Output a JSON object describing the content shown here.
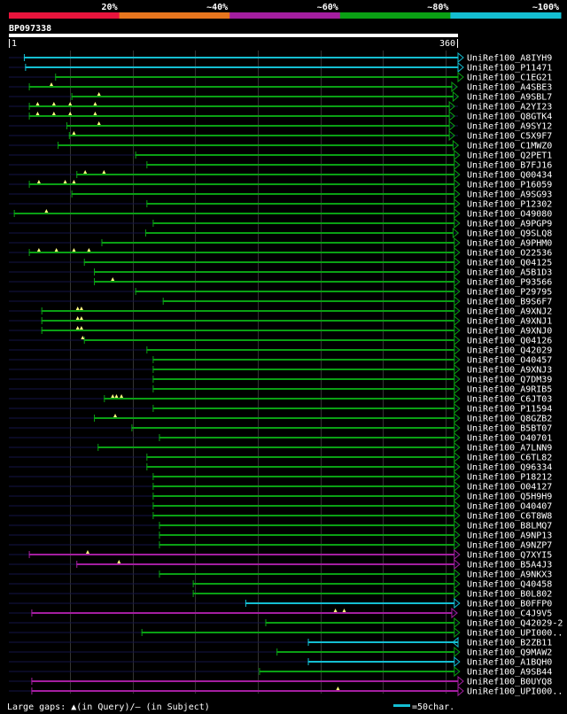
{
  "chart_data": {
    "type": "alignment",
    "query_name": "BP097338",
    "query_start": "1",
    "query_end": "360",
    "x_range": [
      1,
      360
    ],
    "gridlines": [
      50,
      100,
      150,
      200,
      250,
      300,
      350
    ],
    "identity_legend": [
      {
        "label": "20%",
        "color": "#e8143c"
      },
      {
        "label": "~40%",
        "color": "#e8761e"
      },
      {
        "label": "~60%",
        "color": "#a41ea0"
      },
      {
        "label": "~80%",
        "color": "#0aa014"
      },
      {
        "label": "~100%",
        "color": "#14bed2"
      }
    ],
    "colors": {
      "green": "#0aa014",
      "cyan": "#14bed2",
      "magenta": "#a41ea0",
      "dark": "#141446",
      "grid": "#333333",
      "gap": "#ffff80"
    },
    "hits": [
      {
        "name": "UniRef100_A8IYH9",
        "start": 13,
        "end": 360,
        "color": "cyan",
        "arrow": "right",
        "gaps": []
      },
      {
        "name": "UniRef100_P11471",
        "start": 14,
        "end": 360,
        "color": "cyan",
        "arrow": "right",
        "gaps": []
      },
      {
        "name": "UniRef100_C1EG21",
        "start": 38,
        "end": 360,
        "color": "green",
        "arrow": "right",
        "gaps": []
      },
      {
        "name": "UniRef100_A4SBE3",
        "start": 17,
        "end": 355,
        "color": "green",
        "arrow": "right",
        "gaps": [
          35
        ]
      },
      {
        "name": "UniRef100_A9SBL7",
        "start": 51,
        "end": 356,
        "color": "green",
        "arrow": "right",
        "gaps": [
          73
        ]
      },
      {
        "name": "UniRef100_A2YI23",
        "start": 17,
        "end": 353,
        "color": "green",
        "arrow": "right",
        "gaps": [
          24,
          37,
          50,
          70
        ]
      },
      {
        "name": "UniRef100_Q8GTK4",
        "start": 17,
        "end": 353,
        "color": "green",
        "arrow": "right",
        "gaps": [
          24,
          37,
          50,
          70
        ]
      },
      {
        "name": "UniRef100_A9SY12",
        "start": 47,
        "end": 353,
        "color": "green",
        "arrow": "right",
        "gaps": [
          73
        ]
      },
      {
        "name": "UniRef100_C5X9F7",
        "start": 49,
        "end": 353,
        "color": "green",
        "arrow": "right",
        "gaps": [
          53
        ]
      },
      {
        "name": "UniRef100_C1MWZ0",
        "start": 40,
        "end": 356,
        "color": "green",
        "arrow": "right",
        "gaps": []
      },
      {
        "name": "UniRef100_Q2PET1",
        "start": 102,
        "end": 357,
        "color": "green",
        "arrow": "right",
        "gaps": []
      },
      {
        "name": "UniRef100_B7FJ16",
        "start": 111,
        "end": 357,
        "color": "green",
        "arrow": "right",
        "gaps": []
      },
      {
        "name": "UniRef100_Q00434",
        "start": 55,
        "end": 357,
        "color": "green",
        "arrow": "right",
        "gaps": [
          62,
          77
        ]
      },
      {
        "name": "UniRef100_P16059",
        "start": 17,
        "end": 357,
        "color": "green",
        "arrow": "right",
        "gaps": [
          25,
          46,
          53
        ]
      },
      {
        "name": "UniRef100_A9SG93",
        "start": 51,
        "end": 357,
        "color": "green",
        "arrow": "right",
        "gaps": []
      },
      {
        "name": "UniRef100_P12302",
        "start": 111,
        "end": 357,
        "color": "green",
        "arrow": "right",
        "gaps": []
      },
      {
        "name": "UniRef100_O49080",
        "start": 5,
        "end": 357,
        "color": "green",
        "arrow": "right",
        "gaps": [
          31
        ]
      },
      {
        "name": "UniRef100_A9PGP9",
        "start": 116,
        "end": 357,
        "color": "green",
        "arrow": "right",
        "gaps": []
      },
      {
        "name": "UniRef100_Q9SLQ8",
        "start": 110,
        "end": 356,
        "color": "green",
        "arrow": "right",
        "gaps": []
      },
      {
        "name": "UniRef100_A9PHM0",
        "start": 75,
        "end": 357,
        "color": "green",
        "arrow": "right",
        "gaps": []
      },
      {
        "name": "UniRef100_O22536",
        "start": 17,
        "end": 357,
        "color": "green",
        "arrow": "right",
        "gaps": [
          25,
          39,
          53,
          65
        ]
      },
      {
        "name": "UniRef100_Q04125",
        "start": 61,
        "end": 357,
        "color": "green",
        "arrow": "right",
        "gaps": []
      },
      {
        "name": "UniRef100_A5B1D3",
        "start": 69,
        "end": 357,
        "color": "green",
        "arrow": "right",
        "gaps": []
      },
      {
        "name": "UniRef100_P93566",
        "start": 69,
        "end": 357,
        "color": "green",
        "arrow": "right",
        "gaps": [
          84
        ]
      },
      {
        "name": "UniRef100_P29795",
        "start": 102,
        "end": 357,
        "color": "green",
        "arrow": "right",
        "gaps": []
      },
      {
        "name": "UniRef100_B9S6F7",
        "start": 124,
        "end": 357,
        "color": "green",
        "arrow": "right",
        "gaps": []
      },
      {
        "name": "UniRef100_A9XNJ2",
        "start": 27,
        "end": 357,
        "color": "green",
        "arrow": "right",
        "gaps": [
          56,
          59
        ]
      },
      {
        "name": "UniRef100_A9XNJ1",
        "start": 27,
        "end": 357,
        "color": "green",
        "arrow": "right",
        "gaps": [
          56,
          59
        ]
      },
      {
        "name": "UniRef100_A9XNJ0",
        "start": 27,
        "end": 357,
        "color": "green",
        "arrow": "right",
        "gaps": [
          56,
          59
        ]
      },
      {
        "name": "UniRef100_Q04126",
        "start": 61,
        "end": 357,
        "color": "green",
        "arrow": "right",
        "gaps": [
          60
        ]
      },
      {
        "name": "UniRef100_Q42029",
        "start": 111,
        "end": 357,
        "color": "green",
        "arrow": "right",
        "gaps": []
      },
      {
        "name": "UniRef100_O40457",
        "start": 116,
        "end": 357,
        "color": "green",
        "arrow": "right",
        "gaps": []
      },
      {
        "name": "UniRef100_A9XNJ3",
        "start": 116,
        "end": 357,
        "color": "green",
        "arrow": "right",
        "gaps": []
      },
      {
        "name": "UniRef100_Q7DM39",
        "start": 116,
        "end": 357,
        "color": "green",
        "arrow": "right",
        "gaps": []
      },
      {
        "name": "UniRef100_A9RIB5",
        "start": 116,
        "end": 357,
        "color": "green",
        "arrow": "right",
        "gaps": []
      },
      {
        "name": "UniRef100_C6JT03",
        "start": 77,
        "end": 357,
        "color": "green",
        "arrow": "right",
        "gaps": [
          84,
          87,
          91
        ]
      },
      {
        "name": "UniRef100_P11594",
        "start": 116,
        "end": 357,
        "color": "green",
        "arrow": "right",
        "gaps": []
      },
      {
        "name": "UniRef100_Q8GZB2",
        "start": 69,
        "end": 357,
        "color": "green",
        "arrow": "right",
        "gaps": [
          86
        ]
      },
      {
        "name": "UniRef100_B5BT07",
        "start": 99,
        "end": 357,
        "color": "green",
        "arrow": "right",
        "gaps": []
      },
      {
        "name": "UniRef100_O40701",
        "start": 121,
        "end": 357,
        "color": "green",
        "arrow": "right",
        "gaps": []
      },
      {
        "name": "UniRef100_A7LNN9",
        "start": 72,
        "end": 357,
        "color": "green",
        "arrow": "right",
        "gaps": []
      },
      {
        "name": "UniRef100_C6TL82",
        "start": 111,
        "end": 357,
        "color": "green",
        "arrow": "right",
        "gaps": []
      },
      {
        "name": "UniRef100_Q96334",
        "start": 111,
        "end": 357,
        "color": "green",
        "arrow": "right",
        "gaps": []
      },
      {
        "name": "UniRef100_P18212",
        "start": 116,
        "end": 357,
        "color": "green",
        "arrow": "right",
        "gaps": []
      },
      {
        "name": "UniRef100_O04127",
        "start": 116,
        "end": 357,
        "color": "green",
        "arrow": "right",
        "gaps": []
      },
      {
        "name": "UniRef100_Q5H9H9",
        "start": 116,
        "end": 357,
        "color": "green",
        "arrow": "right",
        "gaps": []
      },
      {
        "name": "UniRef100_O40407",
        "start": 116,
        "end": 357,
        "color": "green",
        "arrow": "right",
        "gaps": []
      },
      {
        "name": "UniRef100_C6T8W8",
        "start": 116,
        "end": 357,
        "color": "green",
        "arrow": "right",
        "gaps": []
      },
      {
        "name": "UniRef100_B8LMQ7",
        "start": 121,
        "end": 357,
        "color": "green",
        "arrow": "right",
        "gaps": []
      },
      {
        "name": "UniRef100_A9NP13",
        "start": 121,
        "end": 357,
        "color": "green",
        "arrow": "right",
        "gaps": []
      },
      {
        "name": "UniRef100_A9NZP7",
        "start": 121,
        "end": 357,
        "color": "green",
        "arrow": "right",
        "gaps": []
      },
      {
        "name": "UniRef100_Q7XYI5",
        "start": 17,
        "end": 357,
        "color": "magenta",
        "arrow": "right",
        "gaps": [
          64
        ]
      },
      {
        "name": "UniRef100_B5A4J3",
        "start": 55,
        "end": 357,
        "color": "magenta",
        "arrow": "right",
        "gaps": [
          89
        ]
      },
      {
        "name": "UniRef100_A9NKX3",
        "start": 121,
        "end": 357,
        "color": "green",
        "arrow": "right",
        "gaps": []
      },
      {
        "name": "UniRef100_Q40458",
        "start": 148,
        "end": 357,
        "color": "green",
        "arrow": "right",
        "gaps": []
      },
      {
        "name": "UniRef100_B0L802",
        "start": 148,
        "end": 357,
        "color": "green",
        "arrow": "right",
        "gaps": []
      },
      {
        "name": "UniRef100_B0FFP0",
        "start": 190,
        "end": 357,
        "color": "cyan",
        "arrow": "right",
        "gaps": []
      },
      {
        "name": "UniRef100_C4J9V5",
        "start": 19,
        "end": 355,
        "color": "magenta",
        "arrow": "right",
        "gaps": [
          262,
          269
        ]
      },
      {
        "name": "UniRef100_Q42029-2",
        "start": 206,
        "end": 357,
        "color": "green",
        "arrow": "right",
        "gaps": []
      },
      {
        "name": "UniRef100_UPI000..",
        "start": 107,
        "end": 357,
        "color": "green",
        "arrow": "right",
        "gaps": []
      },
      {
        "name": "UniRef100_B2ZB11",
        "start": 240,
        "end": 360,
        "color": "cyan",
        "arrow": "left",
        "gaps": []
      },
      {
        "name": "UniRef100_Q9MAW2",
        "start": 215,
        "end": 357,
        "color": "green",
        "arrow": "right",
        "gaps": []
      },
      {
        "name": "UniRef100_A1BQH0",
        "start": 240,
        "end": 357,
        "color": "cyan",
        "arrow": "right",
        "gaps": []
      },
      {
        "name": "UniRef100_A9SB44",
        "start": 201,
        "end": 357,
        "color": "green",
        "arrow": "right",
        "gaps": []
      },
      {
        "name": "UniRef100_B0UYQ8",
        "start": 19,
        "end": 360,
        "color": "magenta",
        "arrow": "right",
        "gaps": []
      },
      {
        "name": "UniRef100_UPI000..",
        "start": 19,
        "end": 360,
        "color": "magenta",
        "arrow": "right",
        "gaps": [
          264
        ]
      }
    ]
  },
  "footer": {
    "gaps_note": "Large gaps: ▲(in Query)/— (in Subject)",
    "scale_note": "=50char."
  }
}
